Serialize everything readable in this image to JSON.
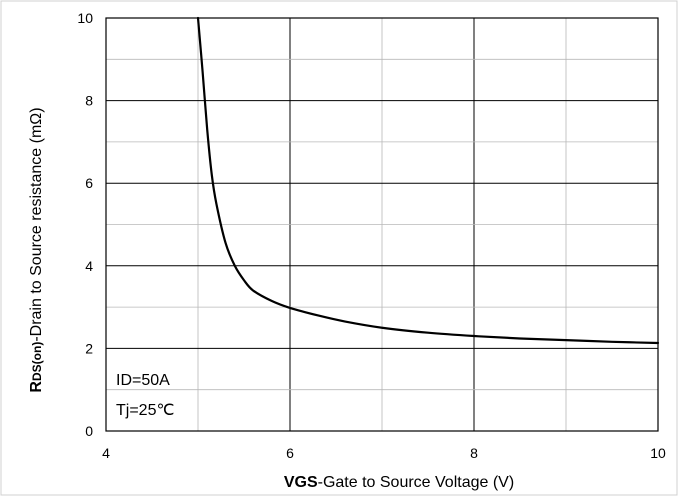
{
  "chart_data": {
    "type": "line",
    "title": "",
    "xlabel": {
      "bold": "VGS",
      "rest": "-Gate to Source Voltage (V)"
    },
    "ylabel": {
      "bold": "R",
      "sub": "DS(on)",
      "rest": "-Drain to Source resistance (mΩ)"
    },
    "xlim": [
      4,
      10
    ],
    "ylim": [
      0,
      10
    ],
    "x_major_ticks": [
      4,
      6,
      8,
      10
    ],
    "y_major_ticks": [
      0,
      2,
      4,
      6,
      8,
      10
    ],
    "x_tick_labels": [
      "4",
      "6",
      "8",
      "10"
    ],
    "y_tick_labels": [
      "0",
      "2",
      "4",
      "6",
      "8",
      "10"
    ],
    "x_minor_step": 1,
    "y_minor_step": 1,
    "grid": true,
    "legend": "none",
    "annotations": [
      "ID=50A",
      "Tj=25℃"
    ],
    "series": [
      {
        "color": "#000000",
        "x": [
          5.0,
          5.05,
          5.1,
          5.15,
          5.2,
          5.3,
          5.4,
          5.5,
          5.6,
          5.8,
          6.0,
          6.3,
          6.6,
          7.0,
          7.5,
          8.0,
          8.5,
          9.0,
          9.5,
          10.0
        ],
        "y": [
          10.0,
          8.7,
          7.3,
          6.2,
          5.5,
          4.55,
          4.0,
          3.65,
          3.4,
          3.15,
          2.98,
          2.8,
          2.65,
          2.5,
          2.38,
          2.3,
          2.24,
          2.2,
          2.16,
          2.13
        ]
      }
    ]
  }
}
